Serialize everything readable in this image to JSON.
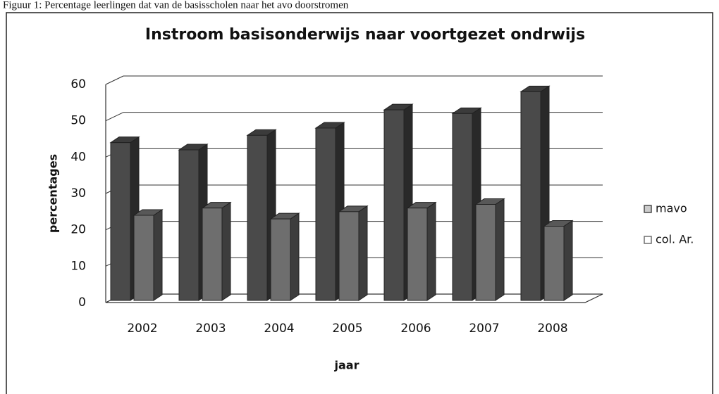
{
  "chart_data": {
    "type": "bar3d",
    "caption": "Figuur 1: Percentage leerlingen dat van de basisscholen naar het avo doorstromen",
    "title": "Instroom basisonderwijs naar voortgezet ondrwijs",
    "y_label": "percentages",
    "x_label": "jaar",
    "categories": [
      "2002",
      "2003",
      "2004",
      "2005",
      "2006",
      "2007",
      "2008"
    ],
    "series": [
      {
        "name": "mavo",
        "color": "#4a4a4a",
        "values": [
          44,
          42,
          46,
          48,
          53,
          52,
          58
        ]
      },
      {
        "name": "col. Ar.",
        "color": "#6e6e6e",
        "values": [
          24,
          26,
          23,
          25,
          26,
          27,
          21
        ]
      }
    ],
    "ylim": [
      0,
      60
    ],
    "yticks": [
      0,
      10,
      20,
      30,
      40,
      50,
      60
    ],
    "grid": true,
    "legend": "right"
  }
}
